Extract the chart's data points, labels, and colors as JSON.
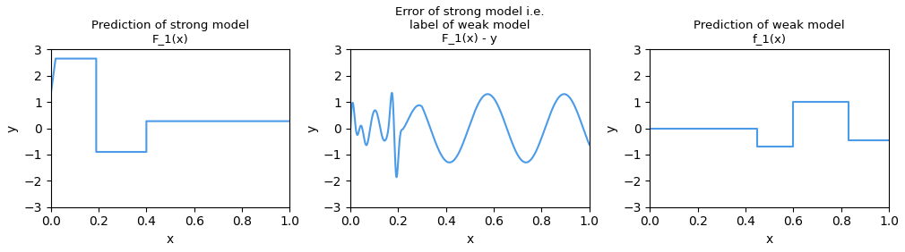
{
  "title1": "Prediction of strong model\nF_1(x)",
  "title2": "Error of strong model i.e.\nlabel of weak model\nF_1(x) - y",
  "title3": "Prediction of weak model\nf_1(x)",
  "xlabel": "x",
  "ylabel": "y",
  "ylim": [
    -3,
    3
  ],
  "xlim": [
    0.0,
    1.0
  ],
  "line_color": "#4C9BE8",
  "figsize": [
    10.1,
    2.82
  ],
  "dpi": 100,
  "plot1_segments": [
    [
      0.0,
      1.3
    ],
    [
      0.02,
      2.65
    ],
    [
      0.19,
      2.65
    ],
    [
      0.19,
      -0.9
    ],
    [
      0.4,
      -0.9
    ],
    [
      0.4,
      0.27
    ],
    [
      1.0,
      0.27
    ]
  ],
  "plot3_segments": [
    [
      0.0,
      0.0
    ],
    [
      0.45,
      0.0
    ],
    [
      0.45,
      -0.7
    ],
    [
      0.6,
      -0.7
    ],
    [
      0.6,
      1.0
    ],
    [
      0.83,
      1.0
    ],
    [
      0.83,
      -0.45
    ],
    [
      1.0,
      -0.45
    ]
  ]
}
